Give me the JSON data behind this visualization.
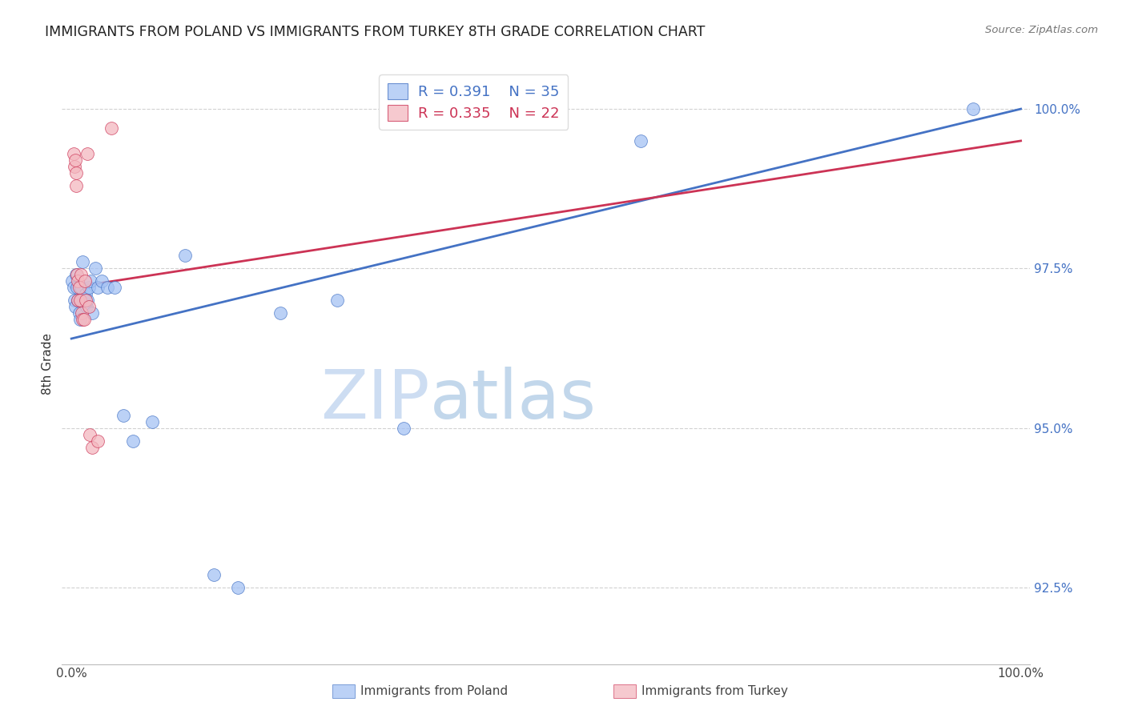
{
  "title": "IMMIGRANTS FROM POLAND VS IMMIGRANTS FROM TURKEY 8TH GRADE CORRELATION CHART",
  "source": "Source: ZipAtlas.com",
  "ylabel": "8th Grade",
  "xlim": [
    -0.01,
    1.01
  ],
  "ylim": [
    91.3,
    100.7
  ],
  "poland_R": 0.391,
  "poland_N": 35,
  "turkey_R": 0.335,
  "turkey_N": 22,
  "poland_color": "#a4c2f4",
  "turkey_color": "#f4b8c0",
  "poland_line_color": "#4472c4",
  "turkey_line_color": "#cc3355",
  "watermark_zip": "ZIP",
  "watermark_atlas": "atlas",
  "poland_x": [
    0.001,
    0.002,
    0.003,
    0.004,
    0.005,
    0.006,
    0.007,
    0.008,
    0.009,
    0.01,
    0.011,
    0.012,
    0.013,
    0.015,
    0.016,
    0.017,
    0.018,
    0.02,
    0.022,
    0.025,
    0.028,
    0.032,
    0.038,
    0.045,
    0.055,
    0.065,
    0.085,
    0.12,
    0.15,
    0.175,
    0.22,
    0.28,
    0.35,
    0.6,
    0.95
  ],
  "poland_y": [
    97.3,
    97.2,
    97.0,
    96.9,
    97.4,
    97.2,
    97.0,
    96.8,
    96.7,
    97.2,
    97.0,
    97.6,
    97.0,
    97.1,
    96.9,
    97.0,
    97.2,
    97.3,
    96.8,
    97.5,
    97.2,
    97.3,
    97.2,
    97.2,
    95.2,
    94.8,
    95.1,
    97.7,
    92.7,
    92.5,
    96.8,
    97.0,
    95.0,
    99.5,
    100.0
  ],
  "turkey_x": [
    0.002,
    0.003,
    0.004,
    0.005,
    0.005,
    0.006,
    0.007,
    0.007,
    0.008,
    0.009,
    0.01,
    0.011,
    0.012,
    0.013,
    0.014,
    0.015,
    0.017,
    0.018,
    0.019,
    0.022,
    0.028,
    0.042
  ],
  "turkey_y": [
    99.3,
    99.1,
    99.2,
    98.8,
    99.0,
    97.4,
    97.3,
    97.0,
    97.2,
    97.0,
    97.4,
    96.8,
    96.7,
    96.7,
    97.3,
    97.0,
    99.3,
    96.9,
    94.9,
    94.7,
    94.8,
    99.7
  ],
  "poland_line_x0": 0.0,
  "poland_line_y0": 96.4,
  "poland_line_x1": 1.0,
  "poland_line_y1": 100.0,
  "turkey_line_x0": 0.0,
  "turkey_line_y0": 97.2,
  "turkey_line_x1": 1.0,
  "turkey_line_y1": 99.5,
  "y_ticks": [
    92.5,
    95.0,
    97.5,
    100.0
  ],
  "y_tick_labels_right": [
    "92.5%",
    "95.0%",
    "97.5%",
    "100.0%"
  ]
}
